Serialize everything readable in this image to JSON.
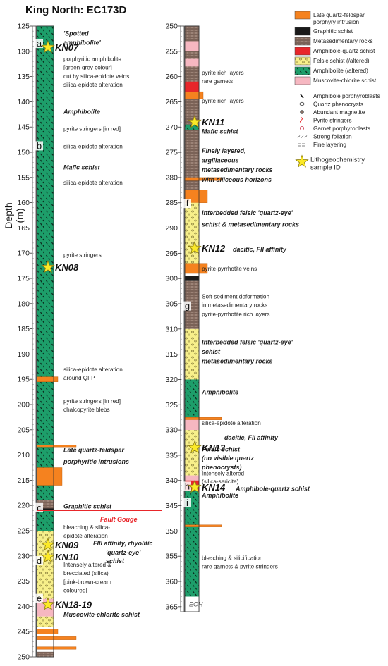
{
  "title": "King North: EC173D",
  "ylabel": "Depth (m)",
  "bottom_label": "EOH",
  "colors": {
    "orange": "#f5821f",
    "graphitic": "#1a1a1a",
    "metased": "#8a7064",
    "amph_qtz": "#e8262a",
    "felsic": "#f7ef8a",
    "amphibolite": "#1d9e6a",
    "muscovite": "#f6b7c1"
  },
  "legend": [
    {
      "label": "Late quartz-feldspar porphyry intrusion",
      "swatch": "orange"
    },
    {
      "label": "Graphitic schist",
      "swatch": "graphitic"
    },
    {
      "label": "Metasedimentary rocks",
      "swatch": "metased"
    },
    {
      "label": "Amphibole-quartz schist",
      "swatch": "amph_qtz"
    },
    {
      "label": "Felsic schist (/altered)",
      "swatch": "felsic"
    },
    {
      "label": "Amphibolite (/altered)",
      "swatch": "amphibolite"
    },
    {
      "label": "Muscovite-chlorite schist",
      "swatch": "muscovite"
    }
  ],
  "symbols": [
    {
      "label": "Amphibole porphyroblasts",
      "icon": "black-dash-icon"
    },
    {
      "label": "Quartz phenocrysts",
      "icon": "open-oval-icon"
    },
    {
      "label": "Abundant magnetite",
      "icon": "star-dot-icon"
    },
    {
      "label": "Pyrite stringers",
      "icon": "red-squiggle-icon"
    },
    {
      "label": "Garnet porphyroblasts",
      "icon": "open-circle-red-icon"
    },
    {
      "label": "Strong foliation",
      "icon": "foliation-icon"
    },
    {
      "label": "Fine layering",
      "icon": "layering-icon"
    }
  ],
  "sample_legend": "Lithogeochemistry sample ID",
  "col1": {
    "depth_min": 125,
    "depth_max": 250,
    "ticks": [
      125,
      130,
      135,
      140,
      145,
      150,
      155,
      160,
      165,
      170,
      175,
      180,
      185,
      190,
      195,
      200,
      205,
      210,
      215,
      220,
      225,
      230,
      235,
      240,
      245,
      250
    ],
    "intervals": [
      {
        "from": 125,
        "to": 219,
        "unit": "amphibolite"
      },
      {
        "from": 152,
        "to": 152.8,
        "unit": "amphibolite"
      },
      {
        "from": 194.5,
        "to": 195.5,
        "unit": "orange"
      },
      {
        "from": 208,
        "to": 208.4,
        "unit": "orange"
      },
      {
        "from": 212.5,
        "to": 216,
        "unit": "orange"
      },
      {
        "from": 219,
        "to": 221,
        "unit": "metased"
      },
      {
        "from": 220.6,
        "to": 221,
        "unit": "graphitic"
      },
      {
        "from": 221,
        "to": 225,
        "unit": "amphibolite"
      },
      {
        "from": 225,
        "to": 238.5,
        "unit": "felsic"
      },
      {
        "from": 238.5,
        "to": 242,
        "unit": "muscovite"
      },
      {
        "from": 242,
        "to": 244,
        "unit": "felsic"
      },
      {
        "from": 244.5,
        "to": 245.5,
        "unit": "orange"
      },
      {
        "from": 246,
        "to": 246.6,
        "unit": "orange"
      },
      {
        "from": 248,
        "to": 248.5,
        "unit": "orange"
      },
      {
        "from": 249,
        "to": 250,
        "unit": "metased"
      }
    ],
    "annotations": [
      {
        "depth": 126.5,
        "text": "'Spotted",
        "bold": true
      },
      {
        "depth": 128.3,
        "text": "amphibolite'",
        "bold": true
      },
      {
        "depth": 131.5,
        "text": "porphyritic amphibolite",
        "bold": false
      },
      {
        "depth": 133.2,
        "text": "[green-grey colour]",
        "bold": false
      },
      {
        "depth": 134.9,
        "text": "cut by silica-epidote veins",
        "bold": false
      },
      {
        "depth": 136.6,
        "text": "silica-epidote alteration",
        "bold": false
      },
      {
        "depth": 142.0,
        "text": "Amphibolite",
        "bold": true
      },
      {
        "depth": 145.3,
        "text": "pyrite stringers [in red]",
        "bold": false
      },
      {
        "depth": 148.8,
        "text": "silica-epidote alteration",
        "bold": false
      },
      {
        "depth": 153.0,
        "text": "Mafic schist",
        "bold": true
      },
      {
        "depth": 156.0,
        "text": "silica-epidote alteration",
        "bold": false
      },
      {
        "depth": 170.3,
        "text": "pyrite stringers",
        "bold": false
      },
      {
        "depth": 193.0,
        "text": "silica-epidote alteration",
        "bold": false
      },
      {
        "depth": 194.7,
        "text": "around QFP",
        "bold": false
      },
      {
        "depth": 199.3,
        "text": "pyrite stringers [in red]",
        "bold": false
      },
      {
        "depth": 201.0,
        "text": "chalcopyrite blebs",
        "bold": false
      },
      {
        "depth": 209.0,
        "text": "Late quartz-feldspar",
        "bold": true
      },
      {
        "depth": 211.3,
        "text": "porphyritic intrusions",
        "bold": true
      },
      {
        "depth": 220.2,
        "text": "Graphitic schist",
        "bold": true
      },
      {
        "depth": 224.3,
        "text": "bleaching & silica-",
        "bold": false
      },
      {
        "depth": 226.0,
        "text": "epidote alteration",
        "bold": false
      },
      {
        "depth": 231.7,
        "text": "Intensely altered &",
        "bold": false
      },
      {
        "depth": 233.4,
        "text": "brecciated (silica)",
        "bold": false
      },
      {
        "depth": 235.1,
        "text": "[pink-brown-cream",
        "bold": false
      },
      {
        "depth": 236.8,
        "text": "coloured]",
        "bold": false
      },
      {
        "depth": 241.6,
        "text": "Muscovite-chlorite schist",
        "bold": true
      }
    ],
    "fault_label": "Fault Gouge",
    "felsic_label_1": "FIII affinity, rhyolitic",
    "felsic_label_2": "'quartz-eye'",
    "felsic_label_3": "schist",
    "letters": [
      {
        "depth": 128.5,
        "text": "a"
      },
      {
        "depth": 148.8,
        "text": "b"
      },
      {
        "depth": 220.5,
        "text": "c"
      },
      {
        "depth": 231,
        "text": "d"
      },
      {
        "depth": 238.5,
        "text": "e"
      }
    ],
    "samples": [
      {
        "depth": 129.2,
        "text": "KN07"
      },
      {
        "depth": 172.8,
        "text": "KN08"
      },
      {
        "depth": 227.8,
        "text": "KN09"
      },
      {
        "depth": 230.2,
        "text": "KN10"
      },
      {
        "depth": 239.6,
        "text": "KN18-19"
      }
    ]
  },
  "col2": {
    "depth_min": 250,
    "depth_max": 366,
    "ticks": [
      250,
      255,
      260,
      265,
      270,
      275,
      280,
      285,
      290,
      295,
      300,
      305,
      310,
      315,
      320,
      325,
      330,
      335,
      340,
      345,
      350,
      355,
      360,
      365
    ],
    "intervals": [
      {
        "from": 250,
        "to": 284,
        "unit": "metased"
      },
      {
        "from": 253,
        "to": 255,
        "unit": "muscovite"
      },
      {
        "from": 256.5,
        "to": 258,
        "unit": "muscovite"
      },
      {
        "from": 261,
        "to": 263,
        "unit": "amph_qtz"
      },
      {
        "from": 263,
        "to": 264.4,
        "unit": "orange"
      },
      {
        "from": 269.5,
        "to": 270.5,
        "unit": "amphibolite"
      },
      {
        "from": 280,
        "to": 280.6,
        "unit": "orange"
      },
      {
        "from": 282.5,
        "to": 285,
        "unit": "orange"
      },
      {
        "from": 285,
        "to": 297,
        "unit": "felsic"
      },
      {
        "from": 297,
        "to": 299,
        "unit": "orange"
      },
      {
        "from": 299.5,
        "to": 300.5,
        "unit": "graphitic"
      },
      {
        "from": 300.5,
        "to": 310,
        "unit": "metased"
      },
      {
        "from": 310,
        "to": 320,
        "unit": "felsic"
      },
      {
        "from": 320,
        "to": 328,
        "unit": "amphibolite"
      },
      {
        "from": 327.5,
        "to": 328,
        "unit": "orange"
      },
      {
        "from": 328,
        "to": 330,
        "unit": "muscovite"
      },
      {
        "from": 330,
        "to": 339,
        "unit": "felsic"
      },
      {
        "from": 339,
        "to": 340,
        "unit": "muscovite"
      },
      {
        "from": 340,
        "to": 342,
        "unit": "amph_qtz"
      },
      {
        "from": 342,
        "to": 363,
        "unit": "amphibolite"
      },
      {
        "from": 348.8,
        "to": 349.2,
        "unit": "orange"
      },
      {
        "from": 363,
        "to": 366,
        "unit": "white"
      }
    ],
    "annotations": [
      {
        "depth": 259.2,
        "text": "pyrite rich layers",
        "bold": false
      },
      {
        "depth": 260.9,
        "text": "rare garnets",
        "bold": false
      },
      {
        "depth": 264.8,
        "text": "pyrite rich layers",
        "bold": false
      },
      {
        "depth": 270.9,
        "text": "Mafic schist",
        "bold": true
      },
      {
        "depth": 274.7,
        "text": "Finely layered,",
        "bold": true
      },
      {
        "depth": 276.6,
        "text": "argillaceous",
        "bold": true
      },
      {
        "depth": 278.5,
        "text": "metasedimentary rocks",
        "bold": true
      },
      {
        "depth": 280.4,
        "text": "with siliceous horizons",
        "bold": true
      },
      {
        "depth": 287.0,
        "text": "Interbedded felsic 'quartz-eye'",
        "bold": true
      },
      {
        "depth": 289.3,
        "text": "schist & metasedimentary rocks",
        "bold": true
      },
      {
        "depth": 298.0,
        "text": "pyrite-pyrrhotite veins",
        "bold": false
      },
      {
        "depth": 303.5,
        "text": "Soft-sediment deformation",
        "bold": false
      },
      {
        "depth": 305.2,
        "text": "in metasedimentary rocks",
        "bold": false
      },
      {
        "depth": 307.0,
        "text": "pyrite-pyrrhotite rich layers",
        "bold": false
      },
      {
        "depth": 312.6,
        "text": "Interbedded felsic 'quartz-eye'",
        "bold": true
      },
      {
        "depth": 314.5,
        "text": "schist",
        "bold": true
      },
      {
        "depth": 316.4,
        "text": "metasedimentary rocks",
        "bold": true
      },
      {
        "depth": 322.5,
        "text": "Amphibolite",
        "bold": true
      },
      {
        "depth": 328.6,
        "text": "silica-epidote alteration",
        "bold": false
      },
      {
        "depth": 333.8,
        "text": "Felsic schist",
        "bold": true
      },
      {
        "depth": 335.6,
        "text": "(no visible quartz",
        "bold": true
      },
      {
        "depth": 337.4,
        "text": "phenocrysts)",
        "bold": true
      },
      {
        "depth": 338.6,
        "text": "Intensely altered",
        "bold": false
      },
      {
        "depth": 340.2,
        "text": "(silica-sericite)",
        "bold": false
      },
      {
        "depth": 343.0,
        "text": "Amphibolite",
        "bold": true
      },
      {
        "depth": 355.3,
        "text": "bleaching & silicification",
        "bold": false
      },
      {
        "depth": 357.0,
        "text": "rare garnets & pyrite stringers",
        "bold": false
      }
    ],
    "felsic12_label": "dacitic, FII affinity",
    "felsic13_label": "dacitic, FII affinity",
    "kn14_label": "Amphibole-quartz schist",
    "letters": [
      {
        "depth": 285.2,
        "text": "f"
      },
      {
        "depth": 305.5,
        "text": "g"
      },
      {
        "depth": 341.2,
        "text": "h"
      },
      {
        "depth": 344.5,
        "text": "i"
      }
    ],
    "samples": [
      {
        "depth": 269.0,
        "text": "KN11"
      },
      {
        "depth": 294.0,
        "text": "KN12"
      },
      {
        "depth": 333.5,
        "text": "KN13"
      },
      {
        "depth": 341.3,
        "text": "KN14"
      }
    ]
  }
}
